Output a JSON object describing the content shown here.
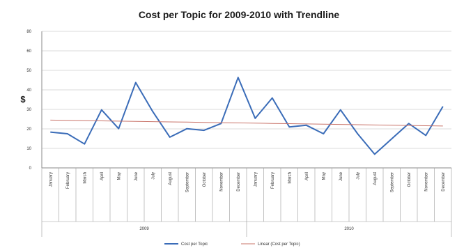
{
  "chart_data": {
    "type": "line",
    "title": "Cost per Topic for 2009-2010 with Trendline",
    "ylabel": "$",
    "xlabel": "",
    "ylim": [
      0,
      80
    ],
    "yticks": [
      "0",
      "10",
      "20",
      "30",
      "40",
      "50",
      "60",
      "80"
    ],
    "categories": [
      "January",
      "February",
      "March",
      "April",
      "May",
      "June",
      "July",
      "August",
      "September",
      "October",
      "November",
      "December",
      "January",
      "February",
      "March",
      "April",
      "May",
      "June",
      "July",
      "August",
      "September",
      "October",
      "November",
      "December"
    ],
    "groups": [
      {
        "label": "2009",
        "span": 12
      },
      {
        "label": "2010",
        "span": 12
      }
    ],
    "grid": true,
    "legend_position": "bottom",
    "series": [
      {
        "name": "Cost per Topic",
        "color": "#3a6cb8",
        "values": [
          21,
          20,
          14,
          34,
          23,
          50,
          33,
          18,
          23,
          22,
          26,
          53,
          29,
          41,
          24,
          25,
          20,
          34,
          20,
          8,
          17,
          26,
          19,
          36
        ]
      },
      {
        "name": "Linear (Cost per Topic)",
        "color": "#c9746a",
        "type": "trendline",
        "values": [
          28.0,
          27.85,
          27.7,
          27.55,
          27.4,
          27.25,
          27.1,
          26.95,
          26.8,
          26.65,
          26.5,
          26.35,
          26.2,
          26.05,
          25.9,
          25.75,
          25.6,
          25.45,
          25.3,
          25.15,
          25.0,
          24.85,
          24.7,
          24.55
        ]
      }
    ]
  }
}
